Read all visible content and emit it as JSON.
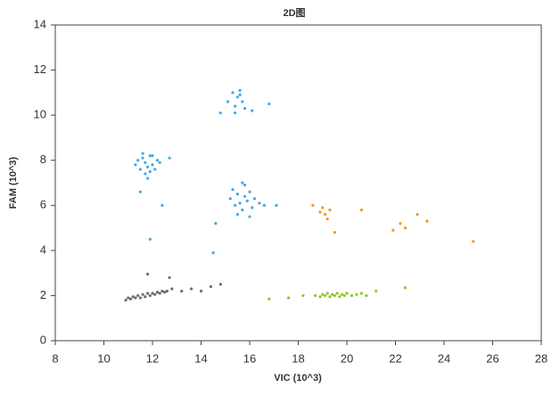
{
  "chart_data": {
    "type": "scatter",
    "title": "2D图",
    "x_label": "VIC (10^3)",
    "y_label": "FAM (10^3)",
    "xlim": [
      8,
      28
    ],
    "ylim": [
      0,
      14
    ],
    "xticks": [
      8,
      10,
      12,
      14,
      16,
      18,
      20,
      22,
      24,
      26,
      28
    ],
    "yticks": [
      0,
      2,
      4,
      6,
      8,
      10,
      12,
      14
    ],
    "grid": false,
    "series": [
      {
        "color": "#6d6d6d",
        "x": [
          10.9,
          11.0,
          11.1,
          11.2,
          11.3,
          11.4,
          11.5,
          11.6,
          11.7,
          11.8,
          11.9,
          12.0,
          12.1,
          12.2,
          12.3,
          12.4,
          12.5,
          12.6,
          12.8,
          13.2,
          13.6,
          14.0,
          14.4,
          14.8,
          11.8,
          12.7
        ],
        "y": [
          1.8,
          1.9,
          1.85,
          1.95,
          1.9,
          2.0,
          1.9,
          2.05,
          1.95,
          2.1,
          2.0,
          2.1,
          2.05,
          2.15,
          2.1,
          2.2,
          2.15,
          2.2,
          2.3,
          2.2,
          2.3,
          2.2,
          2.4,
          2.5,
          2.95,
          2.8
        ]
      },
      {
        "color": "#45a8e6",
        "x": [
          11.3,
          11.5,
          11.6,
          11.7,
          11.8,
          11.9,
          12.0,
          12.1,
          12.2,
          11.4,
          11.7,
          11.9,
          12.3,
          11.6,
          12.0,
          11.8,
          12.7,
          11.5,
          12.4,
          11.9,
          15.1,
          15.3,
          15.4,
          15.5,
          15.6,
          15.7,
          15.8,
          15.4,
          15.6,
          16.1,
          16.8,
          14.8,
          15.2,
          15.4,
          15.5,
          15.6,
          15.7,
          15.8,
          15.9,
          16.0,
          16.1,
          16.2,
          16.4,
          16.6,
          15.5,
          15.8,
          16.0,
          15.3,
          15.7,
          17.1,
          14.6,
          14.5
        ],
        "y": [
          7.8,
          7.6,
          8.1,
          7.9,
          7.7,
          8.2,
          7.8,
          7.6,
          8.0,
          8.0,
          7.4,
          7.5,
          7.9,
          8.3,
          8.2,
          7.2,
          8.1,
          6.6,
          6.0,
          4.5,
          10.6,
          11.0,
          10.4,
          10.8,
          10.9,
          10.6,
          10.3,
          10.1,
          11.1,
          10.2,
          10.5,
          10.1,
          6.3,
          6.0,
          6.5,
          6.1,
          5.8,
          6.4,
          6.2,
          6.6,
          5.9,
          6.3,
          6.1,
          6.0,
          5.6,
          6.9,
          5.5,
          6.7,
          7.0,
          6.0,
          5.2,
          3.9
        ]
      },
      {
        "color": "#8cc924",
        "x": [
          18.7,
          18.9,
          19.0,
          19.1,
          19.2,
          19.3,
          19.4,
          19.5,
          19.6,
          19.7,
          19.8,
          19.9,
          20.0,
          20.2,
          20.4,
          20.6,
          20.8,
          21.2,
          22.4,
          16.8,
          17.6,
          18.2
        ],
        "y": [
          2.0,
          1.95,
          2.05,
          2.0,
          2.1,
          1.95,
          2.05,
          2.0,
          2.1,
          1.95,
          2.05,
          2.0,
          2.1,
          2.0,
          2.05,
          2.1,
          2.0,
          2.2,
          2.35,
          1.85,
          1.9,
          2.0
        ]
      },
      {
        "color": "#f29a1d",
        "x": [
          18.6,
          18.9,
          19.0,
          19.1,
          19.3,
          19.2,
          19.5,
          20.6,
          21.9,
          22.2,
          22.4,
          22.9,
          23.3,
          25.2
        ],
        "y": [
          6.0,
          5.7,
          5.9,
          5.6,
          5.8,
          5.4,
          4.8,
          5.8,
          4.9,
          5.2,
          5.0,
          5.6,
          5.3,
          4.4
        ]
      }
    ]
  }
}
